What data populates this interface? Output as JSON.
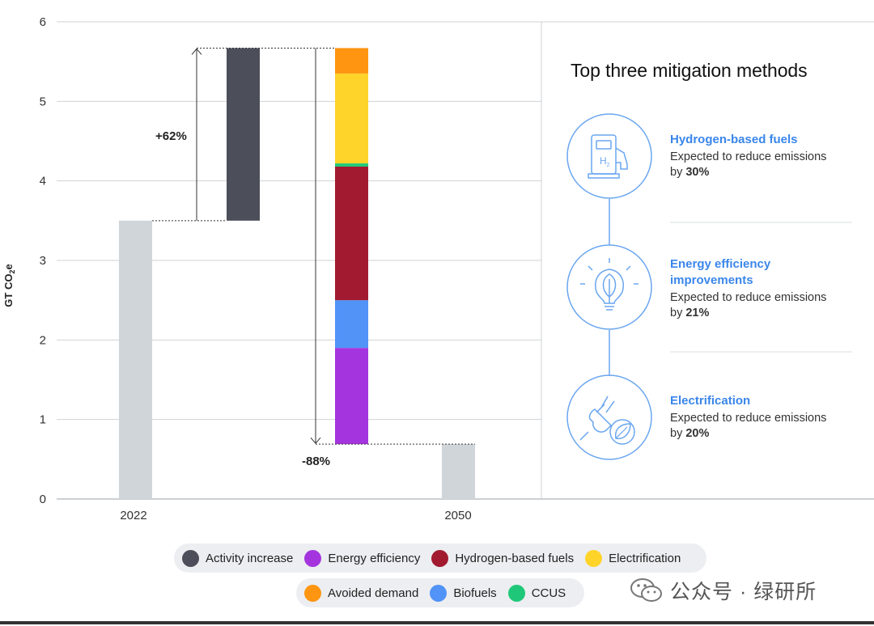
{
  "chart_data": {
    "type": "waterfall",
    "ylabel": "GT CO",
    "ylabel_subscript": "2",
    "ylabel_suffix": "e",
    "ylim": [
      0,
      6
    ],
    "yticks": [
      "0",
      "1",
      "2",
      "3",
      "4",
      "5",
      "6"
    ],
    "categories": [
      "2022",
      "2050"
    ],
    "start_value": 3.5,
    "activity_increase": {
      "name": "Activity increase",
      "from": 3.5,
      "to": 5.67,
      "color": "#4c4f5a"
    },
    "reductions": [
      {
        "name": "Energy efficiency",
        "from": 0.69,
        "to": 1.9,
        "color": "#a435de"
      },
      {
        "name": "Biofuels",
        "from": 1.9,
        "to": 2.5,
        "color": "#5193f7"
      },
      {
        "name": "Hydrogen-based fuels",
        "from": 2.5,
        "to": 4.18,
        "color": "#a21a30"
      },
      {
        "name": "CCUS",
        "from": 4.18,
        "to": 4.22,
        "color": "#1fc879"
      },
      {
        "name": "Electrification",
        "from": 4.22,
        "to": 5.35,
        "color": "#fed42b"
      },
      {
        "name": "Avoided demand",
        "from": 5.35,
        "to": 5.67,
        "color": "#ff9510"
      }
    ],
    "end_value": 0.69,
    "annotations": {
      "increase": "+62%",
      "decrease": "-88%"
    }
  },
  "panel": {
    "title": "Top three mitigation methods",
    "methods": [
      {
        "name": "Hydrogen-based fuels",
        "desc": "Expected to reduce emissions",
        "by": "by ",
        "pct": "30%",
        "icon": "hydrogen-pump-icon"
      },
      {
        "name_line1": "Energy efficiency",
        "name_line2": "improvements",
        "desc": "Expected to reduce emissions",
        "by": "by ",
        "pct": "21%",
        "icon": "leaf-bulb-icon"
      },
      {
        "name": "Electrification",
        "desc": "Expected to reduce emissions",
        "by": "by ",
        "pct": "20%",
        "icon": "plug-leaf-icon"
      }
    ],
    "icon_h2_label": "H",
    "icon_h2_sub": "2"
  },
  "legend": {
    "row1": [
      {
        "label": "Activity increase",
        "color": "#4c4f5a"
      },
      {
        "label": "Energy efficiency",
        "color": "#a435de"
      },
      {
        "label": "Hydrogen-based fuels",
        "color": "#a21a30"
      },
      {
        "label": "Electrification",
        "color": "#fed42b"
      }
    ],
    "row2": [
      {
        "label": "Avoided demand",
        "color": "#ff9510"
      },
      {
        "label": "Biofuels",
        "color": "#5193f7"
      },
      {
        "label": "CCUS",
        "color": "#1fc879"
      }
    ]
  },
  "colors": {
    "neutral_bar": "#d0d5d9",
    "grid": "#cfd2d6",
    "accent": "#3a86ea"
  },
  "watermark": {
    "text": "公众号 · 绿研所",
    "icon": "wechat-icon"
  }
}
